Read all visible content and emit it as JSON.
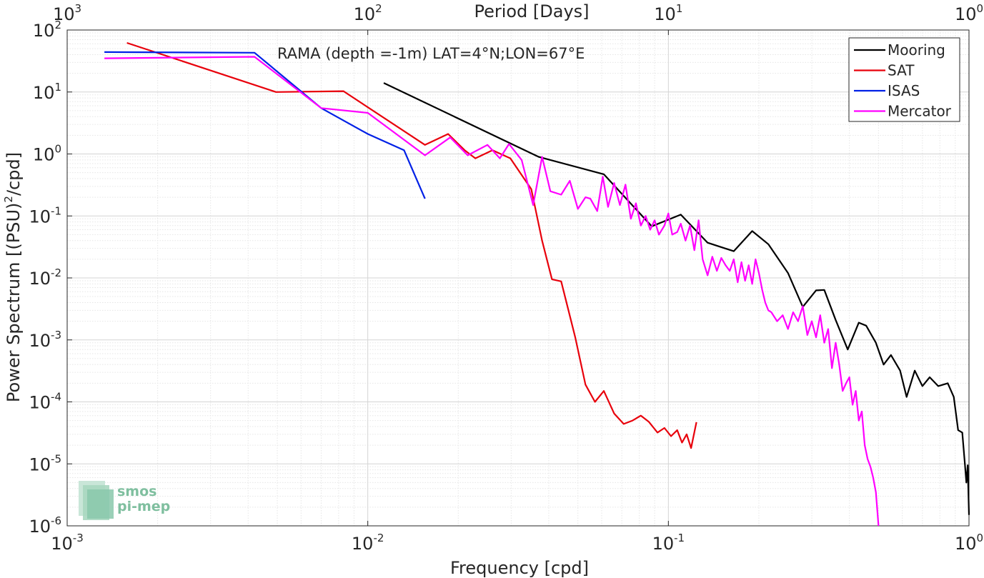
{
  "chart_data": {
    "type": "line",
    "title": "",
    "annotation": "RAMA (depth =-1m) LAT=4°N;LON=67°E",
    "xlabel": "Frequency [cpd]",
    "ylabel": "Power Spectrum [(PSU)",
    "ylabel_sup": "2",
    "ylabel_tail": "/cpd]",
    "top_xlabel": "Period [Days]",
    "xscale": "log",
    "yscale": "log",
    "xlim": [
      0.001,
      1
    ],
    "ylim": [
      1e-06,
      100
    ],
    "grid": true,
    "legend_position": "top-right",
    "x_ticks": [
      {
        "value": 0.001,
        "base": "10",
        "exp": "-3"
      },
      {
        "value": 0.01,
        "base": "10",
        "exp": "-2"
      },
      {
        "value": 0.1,
        "base": "10",
        "exp": "-1"
      },
      {
        "value": 1,
        "base": "10",
        "exp": "0"
      }
    ],
    "y_ticks": [
      {
        "value": 1e-06,
        "base": "10",
        "exp": "-6"
      },
      {
        "value": 1e-05,
        "base": "10",
        "exp": "-5"
      },
      {
        "value": 0.0001,
        "base": "10",
        "exp": "-4"
      },
      {
        "value": 0.001,
        "base": "10",
        "exp": "-3"
      },
      {
        "value": 0.01,
        "base": "10",
        "exp": "-2"
      },
      {
        "value": 0.1,
        "base": "10",
        "exp": "-1"
      },
      {
        "value": 1,
        "base": "10",
        "exp": "0"
      },
      {
        "value": 10,
        "base": "10",
        "exp": "1"
      },
      {
        "value": 100,
        "base": "10",
        "exp": "2"
      }
    ],
    "top_ticks": [
      {
        "value": 0.001,
        "base": "10",
        "exp": "3"
      },
      {
        "value": 0.01,
        "base": "10",
        "exp": "2"
      },
      {
        "value": 0.1,
        "base": "10",
        "exp": "1"
      },
      {
        "value": 1,
        "base": "10",
        "exp": "0"
      }
    ],
    "series": [
      {
        "name": "Mooring",
        "color": "#000000",
        "points": [
          [
            0.0113,
            14
          ],
          [
            0.037,
            0.9
          ],
          [
            0.061,
            0.47
          ],
          [
            0.088,
            0.068
          ],
          [
            0.11,
            0.105
          ],
          [
            0.135,
            0.037
          ],
          [
            0.165,
            0.027
          ],
          [
            0.19,
            0.057
          ],
          [
            0.215,
            0.035
          ],
          [
            0.25,
            0.012
          ],
          [
            0.28,
            0.0034
          ],
          [
            0.31,
            0.0063
          ],
          [
            0.33,
            0.0064
          ],
          [
            0.36,
            0.0021
          ],
          [
            0.395,
            0.0007
          ],
          [
            0.43,
            0.0019
          ],
          [
            0.455,
            0.0017
          ],
          [
            0.49,
            0.0009
          ],
          [
            0.52,
            0.0004
          ],
          [
            0.55,
            0.00057
          ],
          [
            0.59,
            0.00032
          ],
          [
            0.62,
            0.00012
          ],
          [
            0.66,
            0.00032
          ],
          [
            0.7,
            0.00018
          ],
          [
            0.74,
            0.00025
          ],
          [
            0.79,
            0.00018
          ],
          [
            0.85,
            0.0002
          ],
          [
            0.89,
            0.00012
          ],
          [
            0.92,
            3.5e-05
          ],
          [
            0.95,
            3.2e-05
          ],
          [
            0.97,
            9.5e-06
          ],
          [
            0.98,
            5e-06
          ],
          [
            0.99,
            9.5e-06
          ],
          [
            1.0,
            1.5e-06
          ]
        ]
      },
      {
        "name": "SAT",
        "color": "#e8000b",
        "points": [
          [
            0.00158,
            62
          ],
          [
            0.00495,
            10
          ],
          [
            0.0083,
            10.3
          ],
          [
            0.0155,
            1.4
          ],
          [
            0.0185,
            2.1
          ],
          [
            0.021,
            1.15
          ],
          [
            0.0228,
            0.85
          ],
          [
            0.026,
            1.15
          ],
          [
            0.0298,
            0.85
          ],
          [
            0.035,
            0.27
          ],
          [
            0.038,
            0.04
          ],
          [
            0.041,
            0.0095
          ],
          [
            0.044,
            0.0088
          ],
          [
            0.049,
            0.0011
          ],
          [
            0.053,
            0.00019
          ],
          [
            0.057,
            0.0001
          ],
          [
            0.061,
            0.00015
          ],
          [
            0.066,
            6.5e-05
          ],
          [
            0.071,
            4.4e-05
          ],
          [
            0.076,
            5e-05
          ],
          [
            0.081,
            6e-05
          ],
          [
            0.086,
            4.8e-05
          ],
          [
            0.092,
            3.2e-05
          ],
          [
            0.097,
            3.8e-05
          ],
          [
            0.102,
            2.8e-05
          ],
          [
            0.107,
            3.5e-05
          ],
          [
            0.111,
            2.2e-05
          ],
          [
            0.115,
            3e-05
          ],
          [
            0.119,
            1.8e-05
          ],
          [
            0.124,
            4.7e-05
          ]
        ]
      },
      {
        "name": "ISAS",
        "color": "#0020e6",
        "points": [
          [
            0.00133,
            44
          ],
          [
            0.0042,
            43
          ],
          [
            0.007,
            5.5
          ],
          [
            0.01,
            2.1
          ],
          [
            0.0132,
            1.15
          ],
          [
            0.0155,
            0.19
          ]
        ]
      },
      {
        "name": "Mercator",
        "color": "#ff00ff",
        "points": [
          [
            0.00133,
            35
          ],
          [
            0.0042,
            37
          ],
          [
            0.007,
            5.5
          ],
          [
            0.01,
            4.6
          ],
          [
            0.0155,
            0.95
          ],
          [
            0.0188,
            1.85
          ],
          [
            0.0215,
            0.95
          ],
          [
            0.025,
            1.4
          ],
          [
            0.0275,
            0.85
          ],
          [
            0.0295,
            1.45
          ],
          [
            0.0325,
            0.8
          ],
          [
            0.0355,
            0.15
          ],
          [
            0.038,
            0.9
          ],
          [
            0.0405,
            0.25
          ],
          [
            0.044,
            0.22
          ],
          [
            0.047,
            0.37
          ],
          [
            0.05,
            0.13
          ],
          [
            0.053,
            0.2
          ],
          [
            0.055,
            0.19
          ],
          [
            0.058,
            0.12
          ],
          [
            0.0605,
            0.43
          ],
          [
            0.063,
            0.14
          ],
          [
            0.066,
            0.34
          ],
          [
            0.069,
            0.15
          ],
          [
            0.072,
            0.32
          ],
          [
            0.075,
            0.09
          ],
          [
            0.078,
            0.16
          ],
          [
            0.081,
            0.07
          ],
          [
            0.084,
            0.1
          ],
          [
            0.087,
            0.06
          ],
          [
            0.09,
            0.085
          ],
          [
            0.093,
            0.05
          ],
          [
            0.097,
            0.07
          ],
          [
            0.1,
            0.11
          ],
          [
            0.103,
            0.05
          ],
          [
            0.107,
            0.055
          ],
          [
            0.11,
            0.075
          ],
          [
            0.114,
            0.04
          ],
          [
            0.118,
            0.07
          ],
          [
            0.122,
            0.028
          ],
          [
            0.126,
            0.085
          ],
          [
            0.13,
            0.02
          ],
          [
            0.135,
            0.011
          ],
          [
            0.14,
            0.022
          ],
          [
            0.145,
            0.013
          ],
          [
            0.15,
            0.021
          ],
          [
            0.155,
            0.016
          ],
          [
            0.16,
            0.013
          ],
          [
            0.165,
            0.02
          ],
          [
            0.17,
            0.0085
          ],
          [
            0.175,
            0.018
          ],
          [
            0.18,
            0.009
          ],
          [
            0.185,
            0.016
          ],
          [
            0.19,
            0.008
          ],
          [
            0.195,
            0.02
          ],
          [
            0.2,
            0.012
          ],
          [
            0.205,
            0.0065
          ],
          [
            0.21,
            0.004
          ],
          [
            0.215,
            0.003
          ],
          [
            0.22,
            0.0028
          ],
          [
            0.23,
            0.002
          ],
          [
            0.24,
            0.0025
          ],
          [
            0.25,
            0.0015
          ],
          [
            0.26,
            0.0028
          ],
          [
            0.27,
            0.002
          ],
          [
            0.28,
            0.0035
          ],
          [
            0.29,
            0.0012
          ],
          [
            0.3,
            0.002
          ],
          [
            0.31,
            0.0011
          ],
          [
            0.32,
            0.0025
          ],
          [
            0.33,
            0.0009
          ],
          [
            0.34,
            0.0015
          ],
          [
            0.35,
            0.00035
          ],
          [
            0.36,
            0.0009
          ],
          [
            0.37,
            0.0004
          ],
          [
            0.38,
            0.00015
          ],
          [
            0.39,
            0.0002
          ],
          [
            0.4,
            0.00025
          ],
          [
            0.41,
            9e-05
          ],
          [
            0.42,
            0.00015
          ],
          [
            0.43,
            5e-05
          ],
          [
            0.44,
            7e-05
          ],
          [
            0.45,
            2e-05
          ],
          [
            0.46,
            1.2e-05
          ],
          [
            0.47,
            9e-06
          ],
          [
            0.48,
            6e-06
          ],
          [
            0.49,
            3.5e-06
          ],
          [
            0.5,
            1e-06
          ]
        ]
      }
    ]
  }
}
